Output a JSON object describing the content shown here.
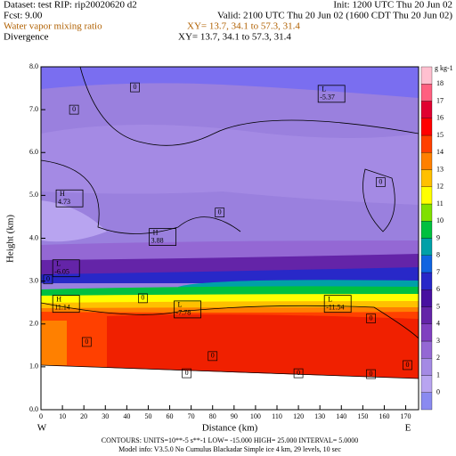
{
  "header": {
    "dataset": "Dataset: test  RIP: rip20020620 d2",
    "init": "Init: 1200 UTC Thu 20 Jun 02",
    "fcst": "Fcst:      9.00",
    "valid": "Valid: 2100 UTC Thu 20 Jun 02 (1600 CDT Thu 20 Jun 02)",
    "field1": "Water vapor mixing ratio",
    "xy1": "XY=  13.7, 34.1 to  57.3, 31.4",
    "field2": "Divergence",
    "xy2": "XY=  13.7, 34.1 to  57.3, 31.4"
  },
  "chart_data": {
    "type": "contour",
    "xlabel": "Distance (km)",
    "ylabel": "Height (km)",
    "left_end": "W",
    "right_end": "E",
    "xlim": [
      0,
      176
    ],
    "xticks": [
      0,
      10,
      20,
      30,
      40,
      50,
      60,
      70,
      80,
      90,
      100,
      110,
      120,
      130,
      140,
      150,
      160,
      170
    ],
    "ylim": [
      0,
      8
    ],
    "yticks": [
      {
        "value": 0,
        "label": "0.0"
      },
      {
        "value": 1,
        "label": "1.0"
      },
      {
        "value": 2,
        "label": "2.0"
      },
      {
        "value": 3,
        "label": "3.0"
      },
      {
        "value": 4,
        "label": "4.0"
      },
      {
        "value": 5,
        "label": "5.0"
      },
      {
        "value": 6,
        "label": "6.0"
      },
      {
        "value": 7,
        "label": "7.0"
      },
      {
        "value": 8,
        "label": "8.0"
      }
    ],
    "colorbar": {
      "unit": "g kg-1",
      "levels": [
        0,
        1,
        2,
        3,
        4,
        5,
        6,
        7,
        8,
        9,
        10,
        11,
        12,
        13,
        14,
        15,
        16,
        17,
        18
      ],
      "colors": [
        "#8a8af0",
        "#b8a4f0",
        "#a48ae4",
        "#9468d4",
        "#8040c0",
        "#6424a8",
        "#4810a0",
        "#2828c8",
        "#1064e0",
        "#00a0a8",
        "#00c040",
        "#80e000",
        "#ffff00",
        "#ffc000",
        "#ff8000",
        "#ff4000",
        "#ff0000",
        "#e00030",
        "#ff6080",
        "#ffc0d0"
      ]
    },
    "extrema": [
      {
        "kind": "L",
        "value": -5.37,
        "x": 132.5,
        "y": 7.38
      },
      {
        "kind": "H",
        "value": 4.73,
        "x": 10.4,
        "y": 4.94
      },
      {
        "kind": "H",
        "value": 3.88,
        "x": 53.8,
        "y": 4.04
      },
      {
        "kind": "L",
        "value": -6.05,
        "x": 8.8,
        "y": 3.31
      },
      {
        "kind": "H",
        "value": 11.14,
        "x": 8.8,
        "y": 2.48
      },
      {
        "kind": "L",
        "value": -7.78,
        "x": 65.4,
        "y": 2.35
      },
      {
        "kind": "L",
        "value": -11.54,
        "x": 135.4,
        "y": 2.48
      }
    ],
    "contour_labels": [
      {
        "value": 0,
        "x": 43.8,
        "y": 7.52
      },
      {
        "value": 0,
        "x": 15.4,
        "y": 7.0
      },
      {
        "value": 0,
        "x": 83.3,
        "y": 4.6
      },
      {
        "value": 0,
        "x": 158.3,
        "y": 5.31
      },
      {
        "value": 0,
        "x": 3.3,
        "y": 3.04
      },
      {
        "value": 0,
        "x": 47.5,
        "y": 2.6
      },
      {
        "value": 0,
        "x": 21.3,
        "y": 1.58
      },
      {
        "value": 0,
        "x": 80,
        "y": 1.25
      },
      {
        "value": 0,
        "x": 67.9,
        "y": 0.85
      },
      {
        "value": 0,
        "x": 120,
        "y": 0.85
      },
      {
        "value": 0,
        "x": 153.8,
        "y": 0.83
      },
      {
        "value": 0,
        "x": 170.8,
        "y": 1.04
      },
      {
        "value": 0,
        "x": 153.8,
        "y": 2.13
      }
    ]
  },
  "footer": {
    "contours": "CONTOURS:  UNITS=10**-5 s**-1  LOW= -15.000  HIGH= 25.000  INTERVAL=  5.0000",
    "model": "Model info: V3.5.0 No Cumulus Blackadar  Simple ice   4 km, 29 levels, 10 sec"
  }
}
